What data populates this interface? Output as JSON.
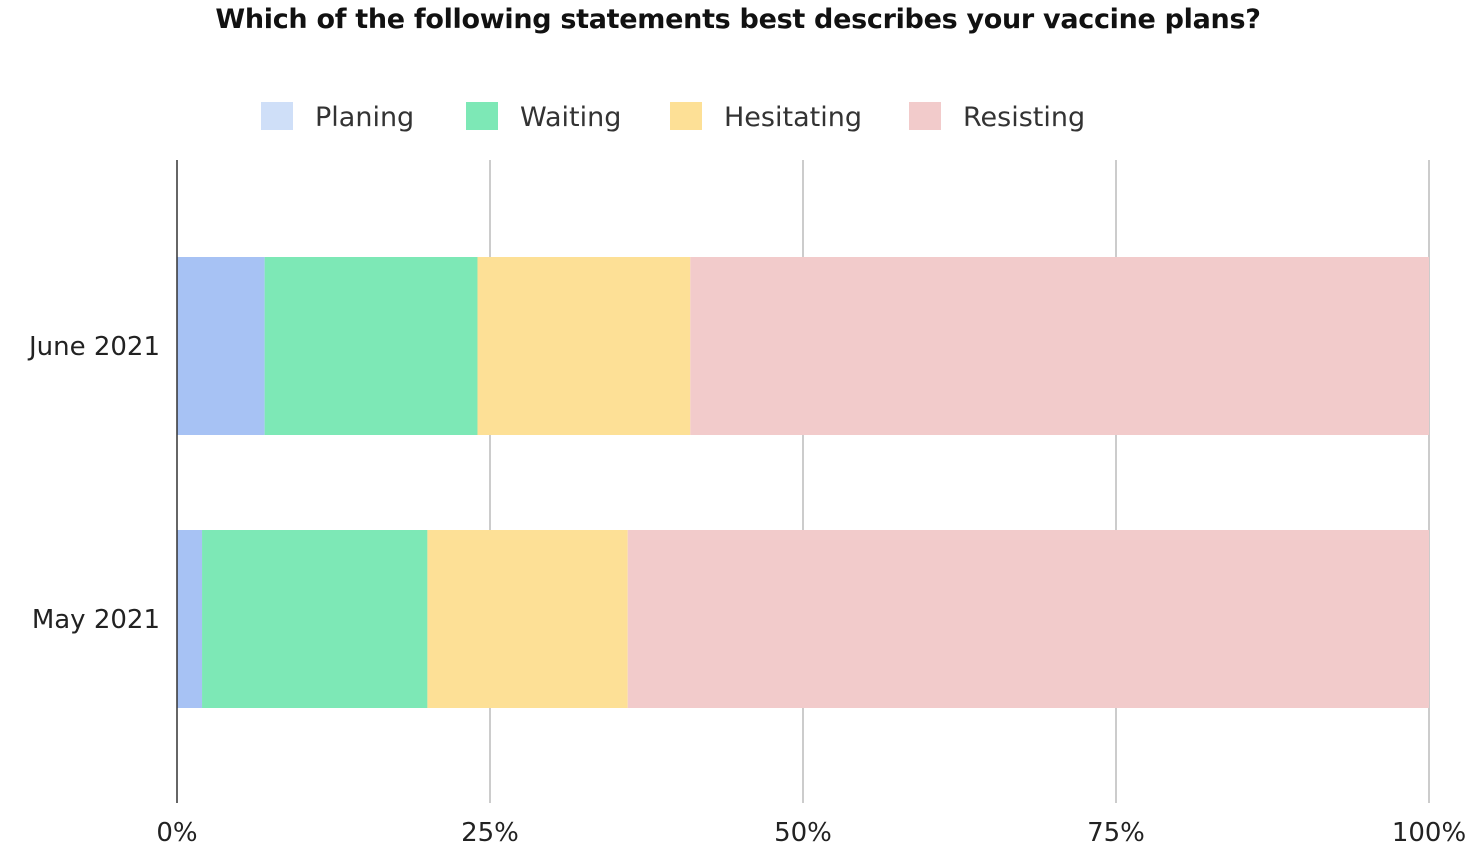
{
  "chart_data": {
    "type": "bar",
    "orientation": "horizontal",
    "stacked": true,
    "title": "Which of the following statements best describes your vaccine plans?",
    "xlabel": "",
    "ylabel": "",
    "categories": [
      "June 2021",
      "May 2021"
    ],
    "series": [
      {
        "name": "Planing",
        "color": "#a7c2f4",
        "values": [
          7,
          2
        ]
      },
      {
        "name": "Waiting",
        "color": "#7de8b6",
        "values": [
          17,
          18
        ]
      },
      {
        "name": "Hesitating",
        "color": "#fde096",
        "values": [
          17,
          16
        ]
      },
      {
        "name": "Resisting",
        "color": "#f2cbcb",
        "values": [
          59,
          64
        ]
      }
    ],
    "legend_swatch_colors": [
      "#cfdff8",
      "#7de8b6",
      "#fde096",
      "#f2cbcb"
    ],
    "xlim": [
      0,
      100
    ],
    "x_ticks": [
      0,
      25,
      50,
      75,
      100
    ],
    "x_tick_labels": [
      "0%",
      "25%",
      "50%",
      "75%",
      "100%"
    ],
    "grid": true,
    "grid_color": "#cccccc",
    "legend_position": "top-center"
  }
}
